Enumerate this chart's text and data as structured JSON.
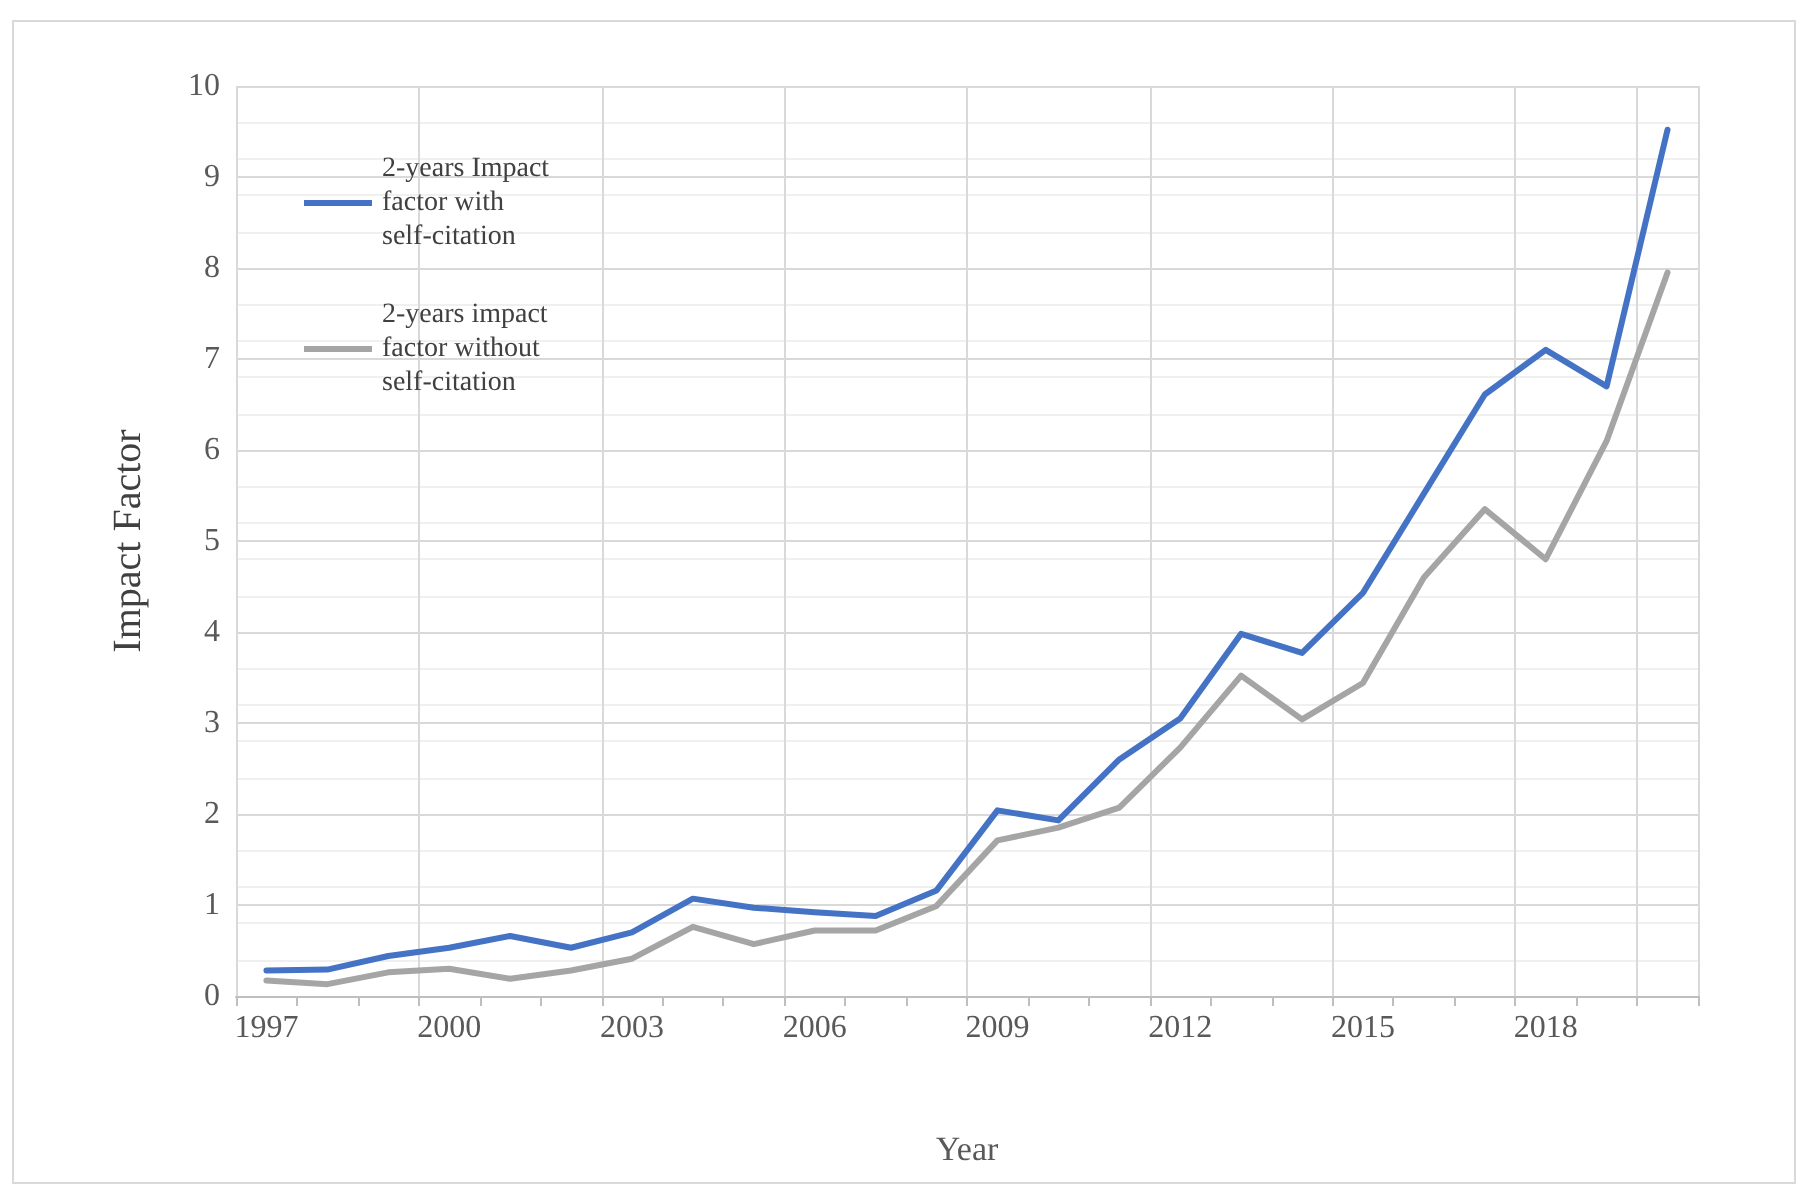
{
  "chart_data": {
    "type": "line",
    "xlabel": "Year",
    "ylabel": "Impact Factor",
    "categories": [
      "1997",
      null,
      null,
      "2000",
      null,
      null,
      "2003",
      null,
      null,
      "2006",
      null,
      null,
      "2009",
      null,
      null,
      "2012",
      null,
      null,
      "2015",
      null,
      null,
      "2018",
      null,
      null
    ],
    "series": [
      {
        "name": "2-years Impact\nfactor with\nself-citation",
        "color": "#4472c4",
        "values": [
          0.28,
          0.29,
          0.44,
          0.53,
          0.66,
          0.53,
          0.7,
          1.07,
          0.97,
          0.92,
          0.88,
          1.16,
          2.04,
          1.93,
          2.6,
          3.05,
          3.98,
          3.77,
          4.43,
          5.52,
          6.61,
          7.1,
          6.7,
          9.52
        ]
      },
      {
        "name": "2-years impact\nfactor without\nself-citation",
        "color": "#a5a5a5",
        "values": [
          0.17,
          0.13,
          0.26,
          0.3,
          0.19,
          0.28,
          0.41,
          0.76,
          0.57,
          0.72,
          0.72,
          0.99,
          1.71,
          1.85,
          2.07,
          2.73,
          3.52,
          3.04,
          3.44,
          4.6,
          5.35,
          4.8,
          6.1,
          7.95
        ]
      }
    ],
    "ylim": [
      0,
      10
    ],
    "yticks": [
      0,
      1,
      2,
      3,
      4,
      5,
      6,
      7,
      8,
      9,
      10
    ],
    "grid": true,
    "legend": "top left",
    "marker": "none",
    "line_style": "solid"
  }
}
